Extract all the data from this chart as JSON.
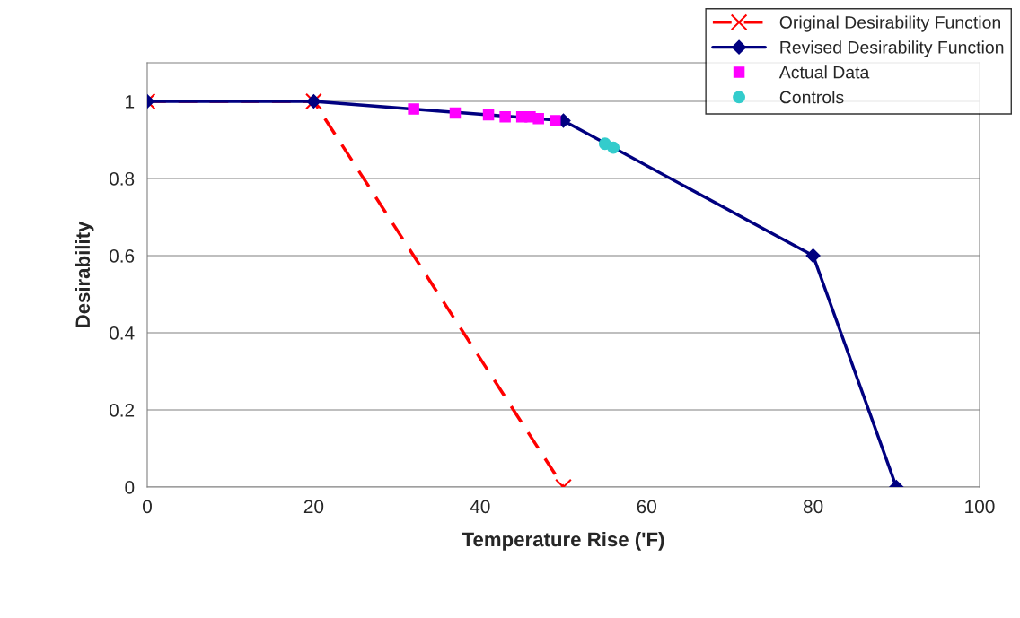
{
  "chart_data": {
    "type": "line",
    "xlabel": "Temperature Rise ('F)",
    "ylabel": "Desirability",
    "xlim": [
      0,
      100
    ],
    "xticks": [
      0,
      20,
      40,
      60,
      80,
      100
    ],
    "ylim": [
      0,
      1.1
    ],
    "yticks": [
      0,
      0.2,
      0.4,
      0.6,
      0.8,
      1
    ],
    "grid": "y",
    "legend": "top right",
    "series": [
      {
        "name": "Original Desirability Function",
        "color": "#ff0000",
        "marker": "cross",
        "line_style": "dashed",
        "x": [
          0,
          20,
          50
        ],
        "values": [
          1,
          1,
          0
        ]
      },
      {
        "name": "Revised Desirability Function",
        "color": "#000080",
        "marker": "diamond",
        "line_style": "solid",
        "x": [
          0,
          20,
          50,
          80,
          90
        ],
        "values": [
          1,
          1,
          0.95,
          0.6,
          0
        ]
      },
      {
        "name": "Actual Data",
        "type": "scatter",
        "color": "#ff00ff",
        "marker": "square",
        "x": [
          32,
          37,
          41,
          43,
          45,
          46,
          47,
          49
        ],
        "values": [
          0.98,
          0.97,
          0.965,
          0.96,
          0.96,
          0.96,
          0.955,
          0.95
        ]
      },
      {
        "name": "Controls",
        "type": "scatter",
        "color": "#33cccc",
        "marker": "circle",
        "x": [
          55,
          56
        ],
        "values": [
          0.89,
          0.88
        ]
      }
    ]
  }
}
